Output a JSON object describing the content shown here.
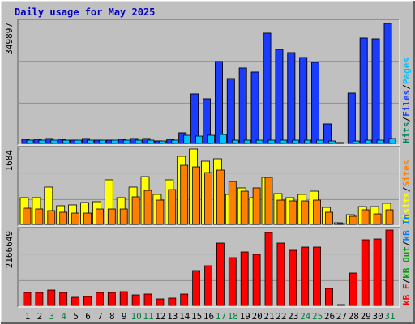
{
  "title": "Daily usage for May 2025",
  "chart_data": [
    {
      "type": "bar",
      "ylim": [
        0,
        349897
      ],
      "yticks": [
        349897
      ],
      "legend_separator": "/",
      "series": [
        {
          "name": "Hits",
          "color": "#00805c",
          "values": [
            11820,
            11820,
            14184,
            11820,
            9456,
            14184,
            9456,
            9456,
            11820,
            14184,
            14184,
            7092,
            11820,
            30732,
            144204,
            130020,
            238764,
            189120,
            219852,
            208032,
            321504,
            274224,
            264768,
            250584,
            236400,
            56736,
            2364,
            146568,
            307320,
            304956,
            349897
          ]
        },
        {
          "name": "Files",
          "color": "#1a3cff",
          "values": [
            11820,
            11820,
            14184,
            11820,
            9456,
            14184,
            9456,
            9456,
            11820,
            14184,
            14184,
            7092,
            11820,
            30732,
            144204,
            130020,
            238764,
            189120,
            219852,
            208032,
            321504,
            274224,
            264768,
            250584,
            236400,
            56736,
            2364,
            146568,
            307320,
            304956,
            349897
          ]
        },
        {
          "name": "Pages",
          "color": "#00c0ff",
          "values": [
            9456,
            9456,
            9456,
            9456,
            9456,
            9456,
            9456,
            9456,
            9456,
            9456,
            9456,
            7092,
            9456,
            23640,
            21276,
            23640,
            26004,
            9456,
            9456,
            9456,
            9456,
            9456,
            9456,
            9456,
            9456,
            7092,
            0,
            7092,
            9456,
            9456,
            14184
          ]
        }
      ]
    },
    {
      "type": "bar",
      "ylim": [
        0,
        1684
      ],
      "yticks": [
        1684
      ],
      "legend_separator": "/",
      "series": [
        {
          "name": "Visits",
          "color": "#ffff00",
          "values": [
            598,
            598,
            833,
            417,
            435,
            489,
            507,
            996,
            598,
            833,
            1068,
            670,
            996,
            1521,
            1684,
            1412,
            1467,
            670,
            815,
            598,
            1050,
            688,
            598,
            670,
            742,
            380,
            36,
            217,
            398,
            398,
            471
          ]
        },
        {
          "name": "Sites",
          "color": "#ff8000",
          "values": [
            362,
            344,
            308,
            272,
            253,
            253,
            344,
            344,
            344,
            616,
            760,
            543,
            778,
            1321,
            1285,
            1158,
            1213,
            959,
            742,
            815,
            1050,
            543,
            525,
            525,
            543,
            272,
            18,
            181,
            326,
            235,
            326
          ]
        }
      ]
    },
    {
      "type": "bar",
      "ylim": [
        0,
        2166649
      ],
      "yticks": [
        2166649
      ],
      "legend_separator": "/",
      "series": [
        {
          "name": "kB F",
          "color": "#ff0000",
          "values": [
            372755,
            372755,
            442643,
            372755,
            232970,
            256267,
            372755,
            372755,
            396049,
            302861,
            326158,
            186376,
            209673,
            326158,
            1001771,
            1141553,
            1793869,
            1374523,
            1537602,
            1467711,
            2096730,
            1793869,
            1584196,
            1677384,
            1677384,
            489237,
            23297,
            931880,
            1887057,
            1910354,
            2166649
          ]
        }
      ],
      "legend_extra": [
        {
          "name": "kB In",
          "color": "#0080ff"
        },
        {
          "name": "kB Out",
          "color": "#00a000"
        }
      ],
      "categories": [
        "1",
        "2",
        "3",
        "4",
        "5",
        "6",
        "7",
        "8",
        "9",
        "10",
        "11",
        "12",
        "13",
        "14",
        "15",
        "16",
        "17",
        "18",
        "19",
        "20",
        "21",
        "22",
        "23",
        "24",
        "25",
        "26",
        "27",
        "28",
        "29",
        "30",
        "31"
      ],
      "category_colors": [
        "#000000",
        "#000000",
        "#008040",
        "#008040",
        "#000000",
        "#000000",
        "#000000",
        "#000000",
        "#000000",
        "#008040",
        "#008040",
        "#000000",
        "#000000",
        "#000000",
        "#000000",
        "#000000",
        "#008040",
        "#008040",
        "#000000",
        "#000000",
        "#000000",
        "#000000",
        "#000000",
        "#008040",
        "#008040",
        "#000000",
        "#000000",
        "#000000",
        "#000000",
        "#000000",
        "#008040"
      ]
    }
  ]
}
